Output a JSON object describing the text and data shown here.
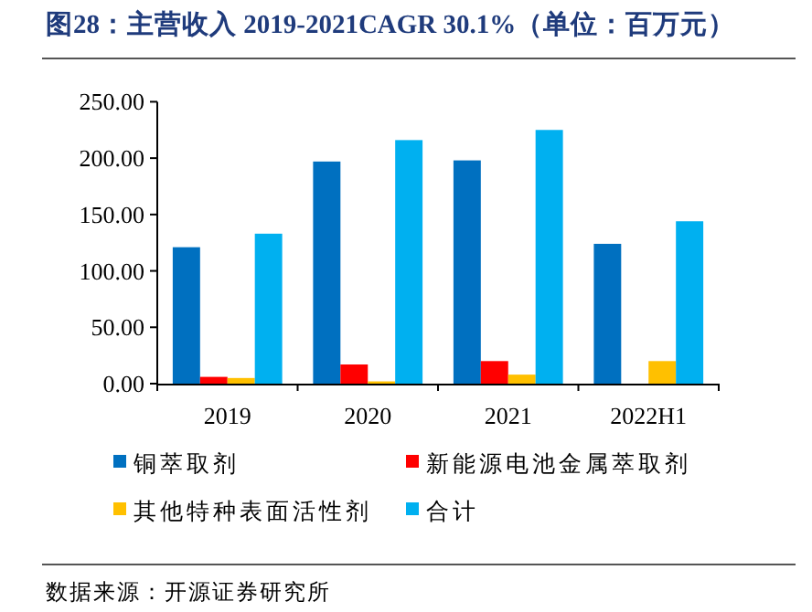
{
  "chart_data": {
    "type": "bar",
    "title": "图28：主营收入 2019-2021CAGR 30.1%（单位：百万元）",
    "categories": [
      "2019",
      "2020",
      "2021",
      "2022H1"
    ],
    "series": [
      {
        "name": "铜萃取剂",
        "color": "#0070c0",
        "values": [
          121,
          197,
          198,
          124
        ]
      },
      {
        "name": "新能源电池金属萃取剂",
        "color": "#ff0000",
        "values": [
          6,
          17,
          20,
          null
        ]
      },
      {
        "name": "其他特种表面活性剂",
        "color": "#ffc000",
        "values": [
          5,
          2,
          8,
          20
        ]
      },
      {
        "name": "合计",
        "color": "#00b0f0",
        "values": [
          133,
          216,
          225,
          144
        ]
      }
    ],
    "ylim": [
      0,
      250
    ],
    "yticks": [
      {
        "value": 0,
        "label": "0.00"
      },
      {
        "value": 50,
        "label": "50.00"
      },
      {
        "value": 100,
        "label": "100.00"
      },
      {
        "value": 150,
        "label": "150.00"
      },
      {
        "value": 200,
        "label": "200.00"
      },
      {
        "value": 250,
        "label": "250.00"
      }
    ],
    "grid": false,
    "legend": "bottom",
    "annotations": [
      "数据来源：开源证券研究所"
    ]
  }
}
